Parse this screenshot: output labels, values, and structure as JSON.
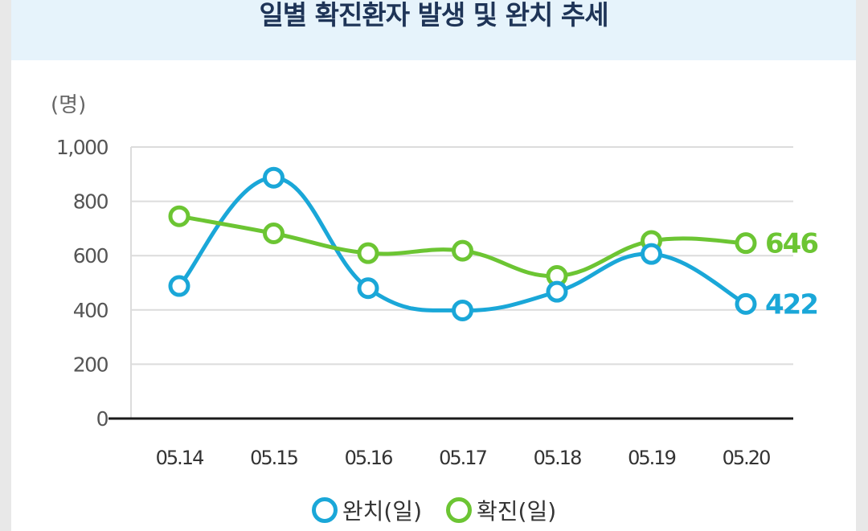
{
  "title": "일별 확진환자 발생 및 완치 추세",
  "chart_data": {
    "type": "line",
    "unit_label": "(명)",
    "categories": [
      "05.14",
      "05.15",
      "05.16",
      "05.17",
      "05.18",
      "05.19",
      "05.20"
    ],
    "ylim": [
      0,
      1000
    ],
    "yticks": [
      0,
      200,
      400,
      600,
      800,
      1000
    ],
    "ytick_labels": [
      "0",
      "200",
      "400",
      "600",
      "800",
      "1,000"
    ],
    "grid": true,
    "legend_position": "bottom-center",
    "series": [
      {
        "name": "완치(일)",
        "color": "#1aa7d8",
        "values": [
          488,
          887,
          480,
          398,
          467,
          606,
          422
        ],
        "end_label": "422"
      },
      {
        "name": "확진(일)",
        "color": "#6cc533",
        "values": [
          745,
          682,
          609,
          618,
          525,
          654,
          646
        ],
        "end_label": "646"
      }
    ]
  }
}
